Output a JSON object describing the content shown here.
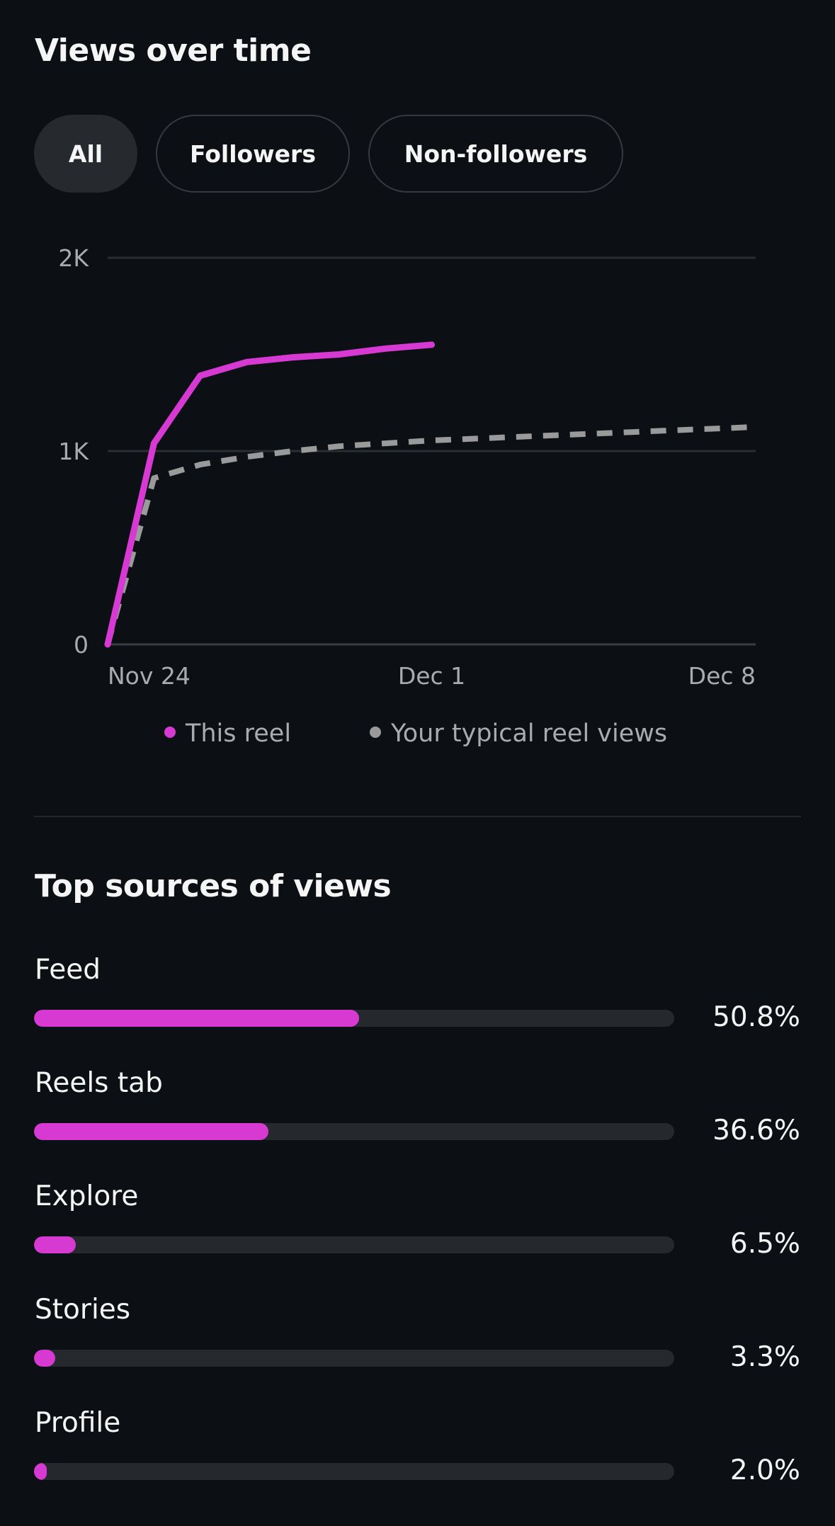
{
  "views_over_time": {
    "title": "Views over time",
    "filters": [
      {
        "label": "All",
        "active": true
      },
      {
        "label": "Followers",
        "active": false
      },
      {
        "label": "Non-followers",
        "active": false
      }
    ]
  },
  "chart_data": {
    "type": "line",
    "y_ticks": [
      "0",
      "1K",
      "2K"
    ],
    "ylim": [
      0,
      2000
    ],
    "x_ticks": [
      "Nov 24",
      "Dec 1",
      "Dec 8"
    ],
    "xlim": [
      0,
      14
    ],
    "grid": true,
    "legend_position": "bottom",
    "series": [
      {
        "name": "This reel",
        "color": "#d73ad2",
        "style": "solid",
        "x": [
          0,
          1,
          2,
          3,
          4,
          5,
          6,
          7
        ],
        "y": [
          0,
          1040,
          1390,
          1460,
          1485,
          1500,
          1530,
          1550
        ]
      },
      {
        "name": "Your typical reel views",
        "color": "#9a9a9a",
        "style": "dashed",
        "x": [
          0,
          1,
          2,
          3,
          4,
          5,
          6,
          7,
          8,
          9,
          10,
          11,
          12,
          13,
          14
        ],
        "y": [
          0,
          860,
          930,
          970,
          1000,
          1025,
          1040,
          1055,
          1065,
          1075,
          1085,
          1095,
          1105,
          1115,
          1125
        ]
      }
    ]
  },
  "top_sources": {
    "title": "Top sources of views",
    "color": "#d73ad2",
    "items": [
      {
        "label": "Feed",
        "value": "50.8%",
        "percent": 50.8
      },
      {
        "label": "Reels tab",
        "value": "36.6%",
        "percent": 36.6
      },
      {
        "label": "Explore",
        "value": "6.5%",
        "percent": 6.5
      },
      {
        "label": "Stories",
        "value": "3.3%",
        "percent": 3.3
      },
      {
        "label": "Profile",
        "value": "2.0%",
        "percent": 2.0
      }
    ]
  }
}
